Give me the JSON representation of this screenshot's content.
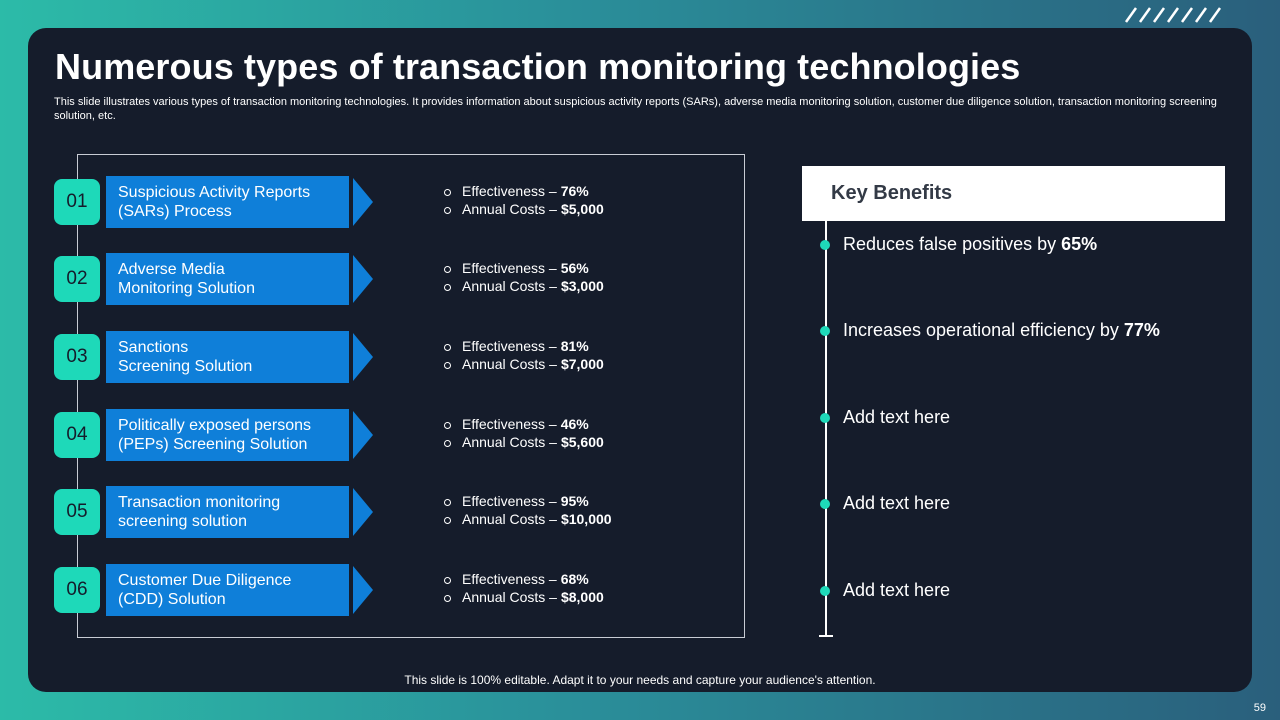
{
  "slide": {
    "title": "Numerous types of transaction monitoring technologies",
    "subtitle": "This slide illustrates various types of transaction monitoring technologies. It provides information about suspicious activity reports (SARs), adverse media monitoring solution, customer due diligence solution, transaction monitoring screening solution, etc.",
    "footer": "This slide is 100% editable. Adapt it to your needs and capture your audience's attention.",
    "page_number": "59"
  },
  "technologies": [
    {
      "number": "01",
      "label": "Suspicious Activity Reports\n(SARs) Process",
      "effectiveness_label": "Effectiveness –",
      "effectiveness": "76%",
      "cost_label": "Annual Costs –",
      "cost": "$5,000"
    },
    {
      "number": "02",
      "label": "Adverse Media\nMonitoring Solution",
      "effectiveness_label": "Effectiveness –",
      "effectiveness": "56%",
      "cost_label": "Annual Costs –",
      "cost": "$3,000"
    },
    {
      "number": "03",
      "label": "Sanctions\nScreening Solution",
      "effectiveness_label": "Effectiveness –",
      "effectiveness": "81%",
      "cost_label": "Annual Costs –",
      "cost": "$7,000"
    },
    {
      "number": "04",
      "label": "Politically exposed persons\n(PEPs) Screening Solution",
      "effectiveness_label": "Effectiveness –",
      "effectiveness": "46%",
      "cost_label": "Annual Costs –",
      "cost": "$5,600"
    },
    {
      "number": "05",
      "label": "Transaction monitoring\nscreening solution",
      "effectiveness_label": "Effectiveness –",
      "effectiveness": "95%",
      "cost_label": "Annual Costs –",
      "cost": "$10,000"
    },
    {
      "number": "06",
      "label": "Customer Due Diligence\n(CDD) Solution",
      "effectiveness_label": "Effectiveness –",
      "effectiveness": "68%",
      "cost_label": "Annual Costs –",
      "cost": "$8,000"
    }
  ],
  "key_benefits": {
    "header": "Key Benefits",
    "items": [
      {
        "text": "Reduces false positives by",
        "value": "65%"
      },
      {
        "text": "Increases operational efficiency by",
        "value": "77%"
      },
      {
        "text": "Add text here",
        "value": ""
      },
      {
        "text": "Add text here",
        "value": ""
      },
      {
        "text": "Add text here",
        "value": ""
      }
    ]
  },
  "colors": {
    "panel": "#151c2b",
    "accent_teal": "#1ed9b9",
    "accent_blue": "#0f7fd9"
  },
  "icons": {
    "decor": "diagonal-slashes-icon",
    "row_arrow": "chevron-right-icon",
    "stat_bullet": "circle-outline-icon"
  }
}
